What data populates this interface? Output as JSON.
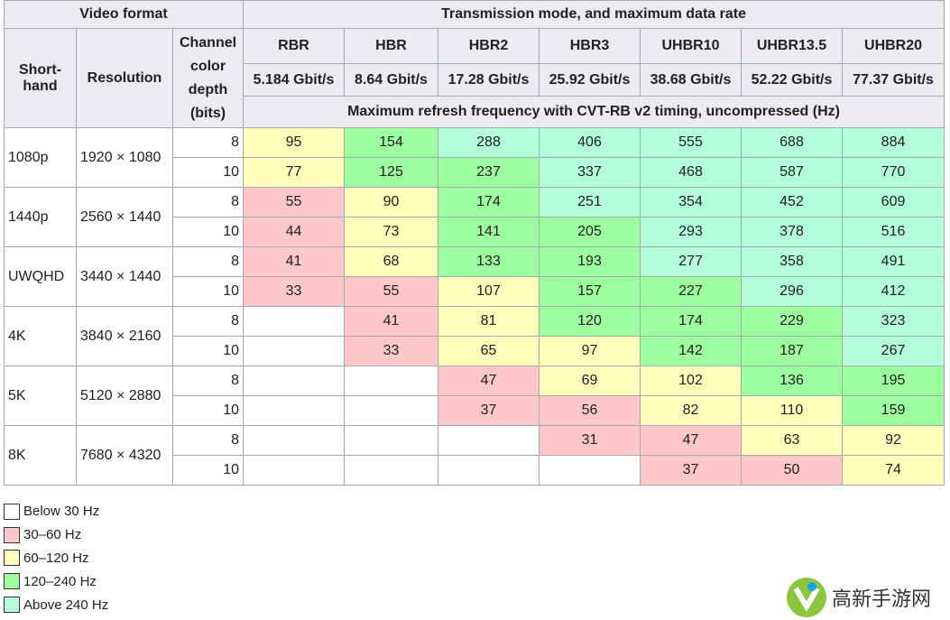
{
  "header": {
    "video_format": "Video format",
    "transmission": "Transmission mode, and maximum data rate",
    "shorthand": "Short-hand",
    "resolution": "Resolution",
    "depth": "Channel color depth (bits)",
    "subheader": "Maximum refresh frequency with CVT-RB v2 timing, uncompressed (Hz)",
    "modes": [
      {
        "name": "RBR",
        "rate": "5.184 Gbit/s"
      },
      {
        "name": "HBR",
        "rate": "8.64 Gbit/s"
      },
      {
        "name": "HBR2",
        "rate": "17.28 Gbit/s"
      },
      {
        "name": "HBR3",
        "rate": "25.92 Gbit/s"
      },
      {
        "name": "UHBR10",
        "rate": "38.68 Gbit/s"
      },
      {
        "name": "UHBR13.5",
        "rate": "52.22 Gbit/s"
      },
      {
        "name": "UHBR20",
        "rate": "77.37 Gbit/s"
      }
    ]
  },
  "groups": [
    {
      "shorthand": "1080p",
      "resolution": "1920 × 1080",
      "rows": [
        {
          "depth": 8,
          "values": [
            95,
            154,
            288,
            406,
            555,
            688,
            884
          ],
          "colors": [
            "#ffffbb",
            "#9eff9e",
            "#b3ffd9",
            "#b3ffd9",
            "#b3ffd9",
            "#b3ffd9",
            "#b3ffd9"
          ]
        },
        {
          "depth": 10,
          "values": [
            77,
            125,
            237,
            337,
            468,
            587,
            770
          ],
          "colors": [
            "#ffffbb",
            "#9eff9e",
            "#9eff9e",
            "#b3ffd9",
            "#b3ffd9",
            "#b3ffd9",
            "#b3ffd9"
          ]
        }
      ]
    },
    {
      "shorthand": "1440p",
      "resolution": "2560 × 1440",
      "rows": [
        {
          "depth": 8,
          "values": [
            55,
            90,
            174,
            251,
            354,
            452,
            609
          ],
          "colors": [
            "#ffc7c7",
            "#ffffbb",
            "#9eff9e",
            "#b3ffd9",
            "#b3ffd9",
            "#b3ffd9",
            "#b3ffd9"
          ]
        },
        {
          "depth": 10,
          "values": [
            44,
            73,
            141,
            205,
            293,
            378,
            516
          ],
          "colors": [
            "#ffc7c7",
            "#ffffbb",
            "#9eff9e",
            "#9eff9e",
            "#b3ffd9",
            "#b3ffd9",
            "#b3ffd9"
          ]
        }
      ]
    },
    {
      "shorthand": "UWQHD",
      "resolution": "3440 × 1440",
      "rows": [
        {
          "depth": 8,
          "values": [
            41,
            68,
            133,
            193,
            277,
            358,
            491
          ],
          "colors": [
            "#ffc7c7",
            "#ffffbb",
            "#9eff9e",
            "#9eff9e",
            "#b3ffd9",
            "#b3ffd9",
            "#b3ffd9"
          ]
        },
        {
          "depth": 10,
          "values": [
            33,
            55,
            107,
            157,
            227,
            296,
            412
          ],
          "colors": [
            "#ffc7c7",
            "#ffc7c7",
            "#ffffbb",
            "#9eff9e",
            "#9eff9e",
            "#b3ffd9",
            "#b3ffd9"
          ]
        }
      ]
    },
    {
      "shorthand": "4K",
      "resolution": "3840 × 2160",
      "rows": [
        {
          "depth": 8,
          "values": [
            null,
            41,
            81,
            120,
            174,
            229,
            323
          ],
          "colors": [
            "#ffffff",
            "#ffc7c7",
            "#ffffbb",
            "#9eff9e",
            "#9eff9e",
            "#9eff9e",
            "#b3ffd9"
          ]
        },
        {
          "depth": 10,
          "values": [
            null,
            33,
            65,
            97,
            142,
            187,
            267
          ],
          "colors": [
            "#ffffff",
            "#ffc7c7",
            "#ffffbb",
            "#ffffbb",
            "#9eff9e",
            "#9eff9e",
            "#b3ffd9"
          ]
        }
      ]
    },
    {
      "shorthand": "5K",
      "resolution": "5120 × 2880",
      "rows": [
        {
          "depth": 8,
          "values": [
            null,
            null,
            47,
            69,
            102,
            136,
            195
          ],
          "colors": [
            "#ffffff",
            "#ffffff",
            "#ffc7c7",
            "#ffffbb",
            "#ffffbb",
            "#9eff9e",
            "#9eff9e"
          ]
        },
        {
          "depth": 10,
          "values": [
            null,
            null,
            37,
            56,
            82,
            110,
            159
          ],
          "colors": [
            "#ffffff",
            "#ffffff",
            "#ffc7c7",
            "#ffc7c7",
            "#ffffbb",
            "#ffffbb",
            "#9eff9e"
          ]
        }
      ]
    },
    {
      "shorthand": "8K",
      "resolution": "7680 × 4320",
      "rows": [
        {
          "depth": 8,
          "values": [
            null,
            null,
            null,
            31,
            47,
            63,
            92
          ],
          "colors": [
            "#ffffff",
            "#ffffff",
            "#ffffff",
            "#ffc7c7",
            "#ffc7c7",
            "#ffffbb",
            "#ffffbb"
          ]
        },
        {
          "depth": 10,
          "values": [
            null,
            null,
            null,
            null,
            37,
            50,
            74
          ],
          "colors": [
            "#ffffff",
            "#ffffff",
            "#ffffff",
            "#ffffff",
            "#ffc7c7",
            "#ffc7c7",
            "#ffffbb"
          ]
        }
      ]
    }
  ],
  "legend": [
    {
      "label": "Below 30 Hz",
      "color": "#ffffff"
    },
    {
      "label": "30–60 Hz",
      "color": "#ffc7c7"
    },
    {
      "label": "60–120 Hz",
      "color": "#ffffbb"
    },
    {
      "label": "120–240 Hz",
      "color": "#9eff9e"
    },
    {
      "label": "Above 240 Hz",
      "color": "#b3ffd9"
    }
  ],
  "watermark": "高新手游网"
}
